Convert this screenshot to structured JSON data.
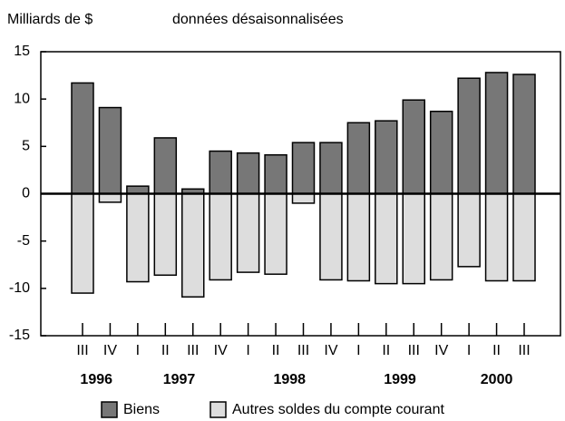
{
  "chart_data": {
    "type": "bar",
    "title": "Milliards de $",
    "subtitle": "données désaisonnalisées",
    "groups": [
      {
        "label": "1996",
        "categories": [
          "III",
          "IV"
        ]
      },
      {
        "label": "1997",
        "categories": [
          "I",
          "II",
          "III",
          "IV"
        ]
      },
      {
        "label": "1998",
        "categories": [
          "I",
          "II",
          "III",
          "IV"
        ]
      },
      {
        "label": "1999",
        "categories": [
          "I",
          "II",
          "III",
          "IV"
        ]
      },
      {
        "label": "2000",
        "categories": [
          "I",
          "II",
          "III"
        ]
      }
    ],
    "series": [
      {
        "name": "Biens",
        "color": "#777777",
        "values": [
          11.7,
          9.1,
          0.8,
          5.9,
          0.5,
          4.5,
          4.3,
          4.1,
          5.4,
          5.4,
          7.5,
          7.7,
          9.9,
          8.7,
          12.2,
          12.8,
          12.6
        ]
      },
      {
        "name": "Autres soldes du compte courant",
        "color": "#dddddd",
        "values": [
          -10.5,
          -0.9,
          -9.3,
          -8.6,
          -10.9,
          -9.1,
          -8.3,
          -8.5,
          -1.0,
          -9.1,
          -9.2,
          -9.5,
          -9.5,
          -9.1,
          -7.7,
          -9.2,
          -9.2
        ]
      }
    ],
    "ylim": [
      -15,
      15
    ],
    "yticks": [
      -15,
      -10,
      -5,
      0,
      5,
      10,
      15
    ],
    "grid": false,
    "legend": "bottom"
  }
}
